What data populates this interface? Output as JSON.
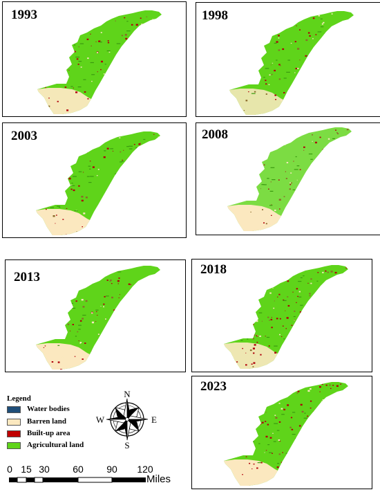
{
  "panels": [
    {
      "year": "1993",
      "barren": 0.9,
      "builtup": 0.6,
      "agri": 1.0
    },
    {
      "year": "1998",
      "barren": 0.7,
      "builtup": 0.35,
      "agri": 1.0
    },
    {
      "year": "2003",
      "barren": 1.0,
      "builtup": 0.4,
      "agri": 1.0
    },
    {
      "year": "2008",
      "barren": 1.0,
      "builtup": 0.3,
      "agri": 0.6
    },
    {
      "year": "2013",
      "barren": 1.0,
      "builtup": 0.5,
      "agri": 1.0
    },
    {
      "year": "2018",
      "barren": 0.8,
      "builtup": 0.8,
      "agri": 1.0
    },
    {
      "year": "2023",
      "barren": 1.0,
      "builtup": 0.7,
      "agri": 1.0
    }
  ],
  "legend": {
    "title": "Legend",
    "items": [
      {
        "label": "Water bodies",
        "color": "#1f4e79"
      },
      {
        "label": "Barren land",
        "color": "#fbe8bf"
      },
      {
        "label": "Built-up area",
        "color": "#c00000"
      },
      {
        "label": "Agricultural land",
        "color": "#5fd41a"
      }
    ]
  },
  "compass": {
    "n": "N",
    "s": "S",
    "e": "E",
    "w": "W"
  },
  "scale_bar": {
    "ticks": [
      "0",
      "15",
      "30",
      "60",
      "90",
      "120"
    ],
    "tick_values": [
      0,
      15,
      30,
      60,
      90,
      120
    ],
    "unit": "Miles"
  },
  "colors": {
    "agricultural": "#5fd41a",
    "barren": "#fbe8bf",
    "builtup": "#b0000a",
    "water": "#1f4e79"
  }
}
